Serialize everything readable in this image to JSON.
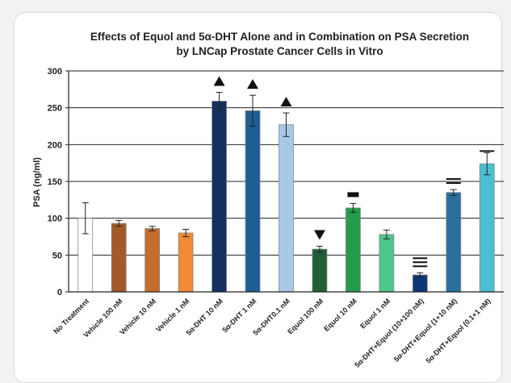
{
  "chart_data": {
    "type": "bar",
    "title_lines": [
      "Effects of Equol and 5α-DHT Alone and in Combination on PSA Secretion",
      "by LNCap Prostate Cancer Cells in Vitro"
    ],
    "xlabel": "",
    "ylabel": "PSA (ng/ml)",
    "ylim": [
      0,
      300
    ],
    "yticks": [
      0,
      50,
      100,
      150,
      200,
      250,
      300
    ],
    "grid": true,
    "categories": [
      "No Treatment",
      "Vehicle 100 nM",
      "Vehicle 10 nM",
      "Vehicle 1 nM",
      "5α-DHT 10 nM",
      "5α-DHT 1 nM",
      "5α-DHT0.1 nM",
      "Equol 100 nM",
      "Equol 10 nM",
      "Equol 1 nM",
      "5α-DHT+Equol (10+100 nM)",
      "5α-DHT+Equol (1+10 nM)",
      "5α-DHT+Equol (0.1+1 nM)"
    ],
    "values": [
      100,
      93,
      86,
      80,
      259,
      246,
      227,
      58,
      114,
      78,
      23,
      135,
      174
    ],
    "errors": [
      21,
      4,
      3,
      5,
      12,
      21,
      16,
      4,
      6,
      6,
      3,
      4,
      15
    ],
    "colors": [
      "#ffffff",
      "#a35a28",
      "#c66c2c",
      "#f08a35",
      "#13315c",
      "#1d5f92",
      "#a7c8e8",
      "#1f5e37",
      "#239d4b",
      "#4cc68a",
      "#0e3778",
      "#2a6f9e",
      "#4bbfd0"
    ],
    "markers": [
      "",
      "",
      "",
      "",
      "triangle-up",
      "triangle-up",
      "triangle-up",
      "triangle-down",
      "dash",
      "",
      "triple-bar",
      "double-bar",
      "single-bar"
    ]
  }
}
